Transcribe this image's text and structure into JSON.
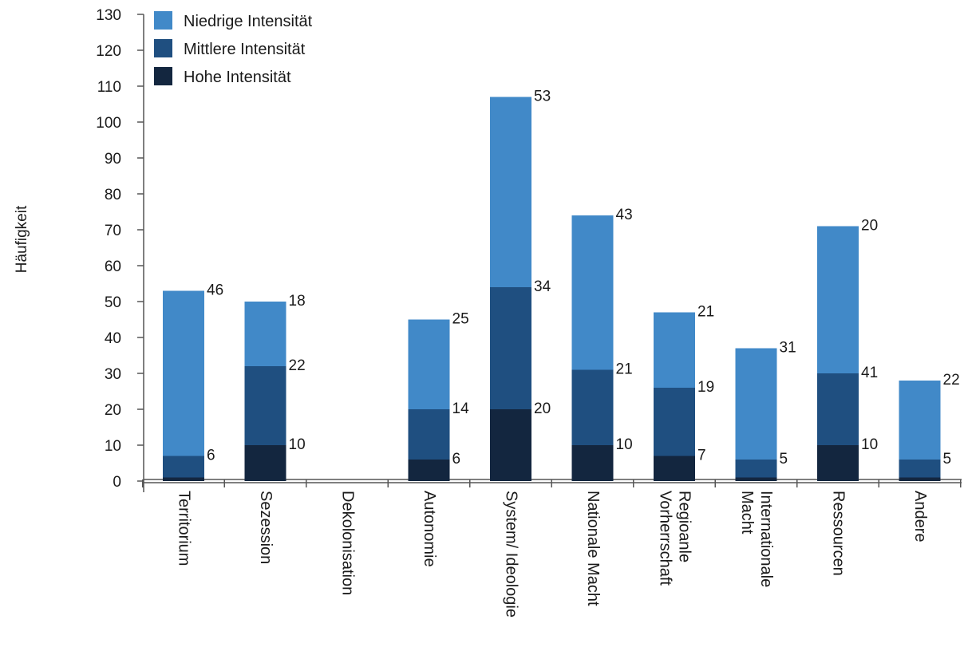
{
  "chart_data": {
    "type": "bar",
    "stacked": true,
    "title": "",
    "xlabel": "",
    "ylabel": "Häufigkeit",
    "ylim": [
      0,
      130
    ],
    "yticks": [
      0,
      10,
      20,
      30,
      40,
      50,
      60,
      70,
      80,
      90,
      100,
      110,
      120,
      130
    ],
    "grid": false,
    "legend_position": "top-left",
    "categories": [
      [
        "Territorium"
      ],
      [
        "Sezession"
      ],
      [
        "Dekolonisation"
      ],
      [
        "Autonomie"
      ],
      [
        "System/ Ideologie"
      ],
      [
        "Nationale Macht"
      ],
      [
        "Regioanle",
        "Vorherrschaft"
      ],
      [
        "Internationale",
        "Macht"
      ],
      [
        "Ressourcen"
      ],
      [
        "Andere"
      ]
    ],
    "series": [
      {
        "name": "Hohe Intensität",
        "color": "#13263f",
        "values": [
          1,
          10,
          0,
          6,
          20,
          10,
          7,
          1,
          10,
          1
        ]
      },
      {
        "name": "Mittlere Intensität",
        "color": "#1f4f80",
        "values": [
          6,
          22,
          0,
          14,
          34,
          21,
          19,
          5,
          20,
          5
        ]
      },
      {
        "name": "Niedrige Intensität",
        "color": "#4189c8",
        "values": [
          46,
          18,
          0,
          25,
          53,
          43,
          21,
          31,
          41,
          22
        ]
      }
    ],
    "data_labels": [
      {
        "top": "46",
        "mid": "6",
        "low": ""
      },
      {
        "top": "18",
        "mid": "22",
        "low": "10"
      },
      {
        "top": "",
        "mid": "",
        "low": ""
      },
      {
        "top": "25",
        "mid": "14",
        "low": "6"
      },
      {
        "top": "53",
        "mid": "34",
        "low": "20"
      },
      {
        "top": "43",
        "mid": "21",
        "low": "10"
      },
      {
        "top": "21",
        "mid": "19",
        "low": "7"
      },
      {
        "top": "31",
        "mid": "5",
        "low": ""
      },
      {
        "top": "20",
        "mid": "41",
        "low": "10",
        "swap": true
      },
      {
        "top": "22",
        "mid": "5",
        "low": ""
      }
    ],
    "legend": [
      {
        "name": "Niedrige Intensität",
        "color": "#4189c8"
      },
      {
        "name": "Mittlere Intensität",
        "color": "#1f4f80"
      },
      {
        "name": "Hohe Intensität",
        "color": "#13263f"
      }
    ]
  }
}
